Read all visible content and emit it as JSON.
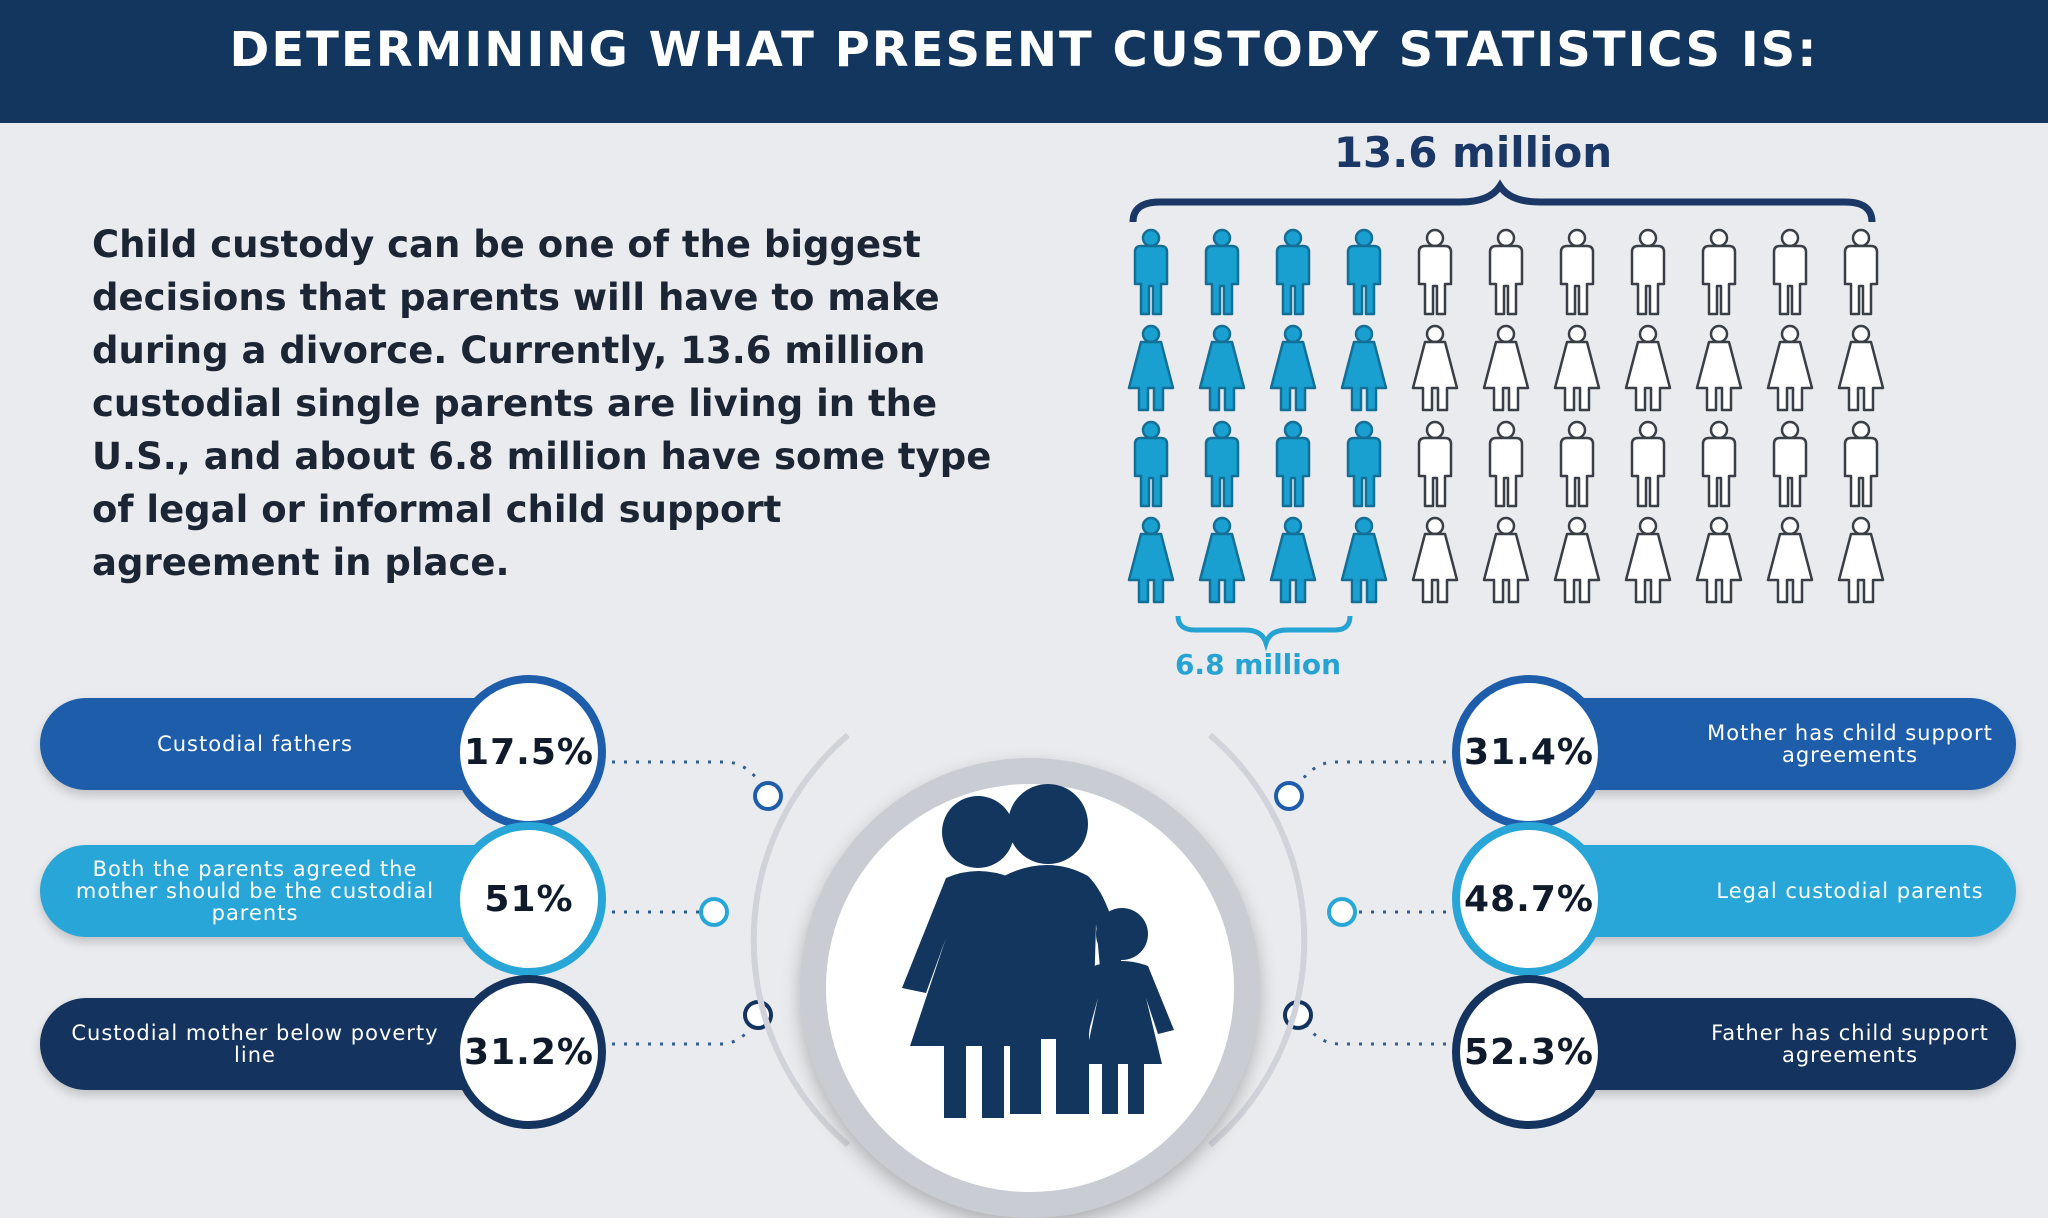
{
  "header": {
    "title": "DETERMINING WHAT PRESENT CUSTODY STATISTICS IS:"
  },
  "intro": {
    "text": "Child custody can be one of the biggest decisions that parents will have to make during a divorce. Currently, 13.6 million custodial single parents are living in the U.S., and about 6.8 million have some type of legal or informal child support agreement in place."
  },
  "pictograph": {
    "total_label": "13.6 million",
    "subset_label": "6.8 million",
    "rows": [
      "male",
      "female",
      "male",
      "female"
    ],
    "icons_per_row": 11,
    "highlighted_per_row": 4,
    "highlight_color": "#1aa0d0",
    "base_color": "#ffffff"
  },
  "stats_left": [
    {
      "label": "Custodial fathers",
      "value": "17.5%",
      "color": "#1e5daa"
    },
    {
      "label": "Both the parents agreed the mother should be the custodial parents",
      "value": "51%",
      "color": "#28a6d7"
    },
    {
      "label": "Custodial mother below  poverty line",
      "value": "31.2%",
      "color": "#14335e"
    }
  ],
  "stats_right": [
    {
      "label": "Mother has child support agreements",
      "value": "31.4%",
      "color": "#1e5daa"
    },
    {
      "label": "Legal custodial parents",
      "value": "48.7%",
      "color": "#28a6d7"
    },
    {
      "label": "Father has child support agreements",
      "value": "52.3%",
      "color": "#14335e"
    }
  ],
  "center": {
    "icon": "family-icon",
    "color": "#13365f"
  }
}
